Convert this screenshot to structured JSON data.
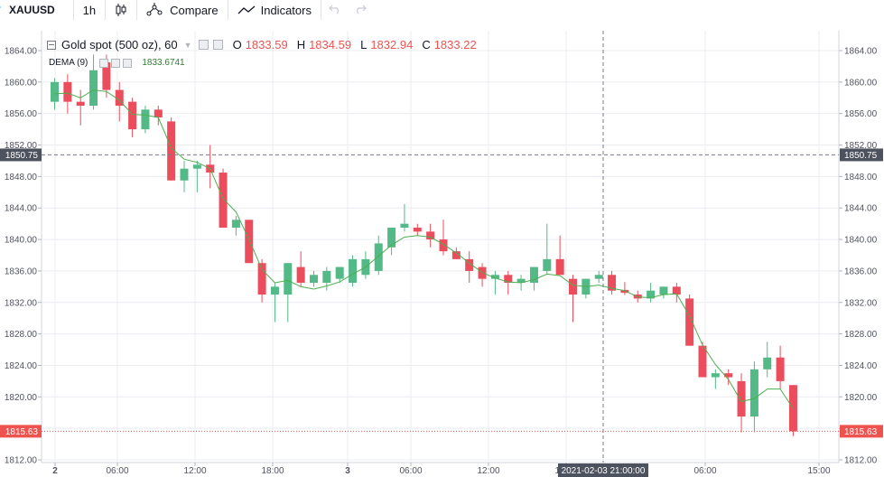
{
  "toolbar": {
    "symbol": "XAUUSD",
    "interval": "1h",
    "compare_label": "Compare",
    "indicators_label": "Indicators",
    "icons": [
      "candles-icon",
      "compare-icon",
      "indicators-icon",
      "undo-icon",
      "redo-icon"
    ]
  },
  "legend": {
    "title": "Gold spot (500 oz), 60",
    "o_label": "O",
    "o_value": "1833.59",
    "h_label": "H",
    "h_value": "1834.59",
    "l_label": "L",
    "l_value": "1832.94",
    "c_label": "C",
    "c_value": "1833.22",
    "dema_label": "DEMA (9)",
    "dema_value": "1833.6741"
  },
  "colors": {
    "up": "#53b987",
    "down": "#eb4d5c",
    "dema": "#4caf50",
    "grid": "#e9ecf1",
    "last_price": "#ef5350",
    "crosshair_label": "#4c525e"
  },
  "chart_data": {
    "type": "candlestick",
    "symbol": "XAUUSD",
    "interval": "1h",
    "ylim": [
      1811.5,
      1868
    ],
    "y_ticks": [
      "1812.00",
      "1816.00",
      "1820.00",
      "1824.00",
      "1828.00",
      "1832.00",
      "1836.00",
      "1840.00",
      "1844.00",
      "1848.00",
      "1852.00",
      "1856.00",
      "1860.00",
      "1864.00"
    ],
    "x_ticks": [
      "2",
      "06:00",
      "12:00",
      "18:00",
      "3",
      "06:00",
      "12:00",
      "18:00",
      "06:00",
      "15:00"
    ],
    "crosshair": {
      "price": "1850.75",
      "time": "2021-02-03 21:00:00"
    },
    "last_price": "1815.63",
    "candles": [
      {
        "o": 1857.5,
        "h": 1860.5,
        "l": 1856.5,
        "c": 1860.0
      },
      {
        "o": 1860.0,
        "h": 1861.0,
        "l": 1856.0,
        "c": 1857.5
      },
      {
        "o": 1857.5,
        "h": 1859.0,
        "l": 1854.5,
        "c": 1857.0
      },
      {
        "o": 1857.0,
        "h": 1863.5,
        "l": 1856.5,
        "c": 1861.5
      },
      {
        "o": 1862.5,
        "h": 1863.5,
        "l": 1858.0,
        "c": 1859.0
      },
      {
        "o": 1859.0,
        "h": 1860.0,
        "l": 1855.0,
        "c": 1857.0
      },
      {
        "o": 1857.5,
        "h": 1858.0,
        "l": 1853.0,
        "c": 1854.0
      },
      {
        "o": 1854.0,
        "h": 1857.0,
        "l": 1853.5,
        "c": 1856.5
      },
      {
        "o": 1856.5,
        "h": 1857.0,
        "l": 1854.5,
        "c": 1855.5
      },
      {
        "o": 1855.0,
        "h": 1855.5,
        "l": 1847.5,
        "c": 1847.5
      },
      {
        "o": 1847.5,
        "h": 1850.0,
        "l": 1846.0,
        "c": 1849.0
      },
      {
        "o": 1849.0,
        "h": 1850.0,
        "l": 1846.0,
        "c": 1849.5
      },
      {
        "o": 1849.5,
        "h": 1852.0,
        "l": 1846.5,
        "c": 1848.5
      },
      {
        "o": 1848.5,
        "h": 1849.0,
        "l": 1841.5,
        "c": 1841.5
      },
      {
        "o": 1841.5,
        "h": 1843.0,
        "l": 1840.5,
        "c": 1842.5
      },
      {
        "o": 1842.5,
        "h": 1842.5,
        "l": 1837.0,
        "c": 1837.0
      },
      {
        "o": 1837.0,
        "h": 1837.5,
        "l": 1832.0,
        "c": 1833.0
      },
      {
        "o": 1833.0,
        "h": 1834.5,
        "l": 1829.5,
        "c": 1834.0
      },
      {
        "o": 1833.0,
        "h": 1837.0,
        "l": 1829.5,
        "c": 1837.0
      },
      {
        "o": 1836.5,
        "h": 1838.5,
        "l": 1834.0,
        "c": 1834.5
      },
      {
        "o": 1834.5,
        "h": 1836.0,
        "l": 1834.0,
        "c": 1835.5
      },
      {
        "o": 1834.5,
        "h": 1836.5,
        "l": 1833.5,
        "c": 1836.0
      },
      {
        "o": 1835.0,
        "h": 1836.5,
        "l": 1834.5,
        "c": 1836.5
      },
      {
        "o": 1834.5,
        "h": 1838.0,
        "l": 1834.0,
        "c": 1837.5
      },
      {
        "o": 1835.5,
        "h": 1838.5,
        "l": 1835.0,
        "c": 1837.5
      },
      {
        "o": 1836.0,
        "h": 1840.5,
        "l": 1835.5,
        "c": 1839.5
      },
      {
        "o": 1839.0,
        "h": 1841.5,
        "l": 1838.0,
        "c": 1841.5
      },
      {
        "o": 1841.5,
        "h": 1844.5,
        "l": 1841.0,
        "c": 1842.0
      },
      {
        "o": 1841.5,
        "h": 1842.0,
        "l": 1840.5,
        "c": 1841.0
      },
      {
        "o": 1841.0,
        "h": 1842.0,
        "l": 1839.0,
        "c": 1840.0
      },
      {
        "o": 1840.0,
        "h": 1842.5,
        "l": 1838.0,
        "c": 1838.5
      },
      {
        "o": 1838.5,
        "h": 1839.0,
        "l": 1837.5,
        "c": 1837.5
      },
      {
        "o": 1837.5,
        "h": 1838.5,
        "l": 1834.5,
        "c": 1836.0
      },
      {
        "o": 1836.5,
        "h": 1837.0,
        "l": 1834.0,
        "c": 1835.0
      },
      {
        "o": 1835.0,
        "h": 1836.0,
        "l": 1833.0,
        "c": 1835.5
      },
      {
        "o": 1835.5,
        "h": 1836.0,
        "l": 1833.0,
        "c": 1834.5
      },
      {
        "o": 1834.5,
        "h": 1835.5,
        "l": 1833.5,
        "c": 1835.0
      },
      {
        "o": 1834.5,
        "h": 1836.5,
        "l": 1833.5,
        "c": 1836.5
      },
      {
        "o": 1836.0,
        "h": 1842.0,
        "l": 1835.5,
        "c": 1837.5
      },
      {
        "o": 1837.5,
        "h": 1840.5,
        "l": 1836.0,
        "c": 1835.5
      },
      {
        "o": 1835.0,
        "h": 1835.5,
        "l": 1829.5,
        "c": 1833.0
      },
      {
        "o": 1833.0,
        "h": 1835.0,
        "l": 1832.5,
        "c": 1835.0
      },
      {
        "o": 1835.0,
        "h": 1836.0,
        "l": 1834.5,
        "c": 1835.5
      },
      {
        "o": 1835.5,
        "h": 1836.0,
        "l": 1833.0,
        "c": 1833.5
      },
      {
        "o": 1833.59,
        "h": 1834.59,
        "l": 1832.94,
        "c": 1833.22
      },
      {
        "o": 1833.0,
        "h": 1833.5,
        "l": 1832.0,
        "c": 1832.5
      },
      {
        "o": 1832.5,
        "h": 1834.5,
        "l": 1832.0,
        "c": 1833.5
      },
      {
        "o": 1833.0,
        "h": 1834.0,
        "l": 1832.5,
        "c": 1834.0
      },
      {
        "o": 1834.0,
        "h": 1834.5,
        "l": 1832.0,
        "c": 1833.0
      },
      {
        "o": 1832.5,
        "h": 1833.0,
        "l": 1826.5,
        "c": 1826.5
      },
      {
        "o": 1826.5,
        "h": 1827.0,
        "l": 1822.5,
        "c": 1822.5
      },
      {
        "o": 1822.5,
        "h": 1823.5,
        "l": 1821.0,
        "c": 1823.0
      },
      {
        "o": 1823.0,
        "h": 1823.5,
        "l": 1821.5,
        "c": 1822.5
      },
      {
        "o": 1822.0,
        "h": 1823.0,
        "l": 1815.5,
        "c": 1817.5
      },
      {
        "o": 1817.5,
        "h": 1824.5,
        "l": 1815.5,
        "c": 1823.5
      },
      {
        "o": 1823.5,
        "h": 1827.0,
        "l": 1822.5,
        "c": 1825.0
      },
      {
        "o": 1825.0,
        "h": 1826.5,
        "l": 1821.0,
        "c": 1822.0
      },
      {
        "o": 1821.5,
        "h": 1821.5,
        "l": 1815.0,
        "c": 1815.63
      }
    ],
    "dema": [
      1858.5,
      1858.6,
      1858.0,
      1859.0,
      1858.8,
      1857.7,
      1855.9,
      1855.8,
      1855.5,
      1851.6,
      1850.2,
      1849.8,
      1849.0,
      1845.2,
      1843.5,
      1840.0,
      1836.2,
      1834.5,
      1834.8,
      1834.0,
      1833.7,
      1834.1,
      1834.6,
      1835.6,
      1836.5,
      1837.9,
      1839.3,
      1840.3,
      1840.5,
      1840.3,
      1839.4,
      1838.3,
      1837.0,
      1835.8,
      1835.1,
      1834.6,
      1834.5,
      1834.9,
      1835.6,
      1835.4,
      1834.2,
      1834.0,
      1834.2,
      1833.8,
      1833.5,
      1832.7,
      1832.6,
      1833.0,
      1833.1,
      1830.3,
      1826.6,
      1824.1,
      1822.2,
      1819.4,
      1819.8,
      1821.0,
      1821.0,
      1818.5
    ]
  }
}
